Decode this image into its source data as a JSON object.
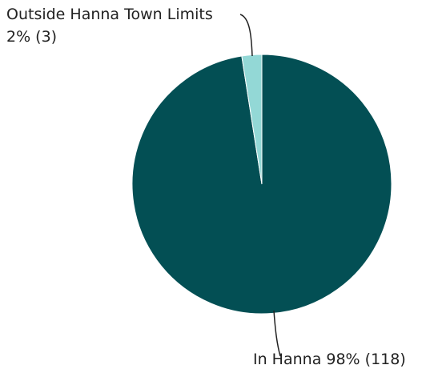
{
  "chart_data": {
    "type": "pie",
    "title": "",
    "slices": [
      {
        "label": "In Hanna",
        "display": "In Hanna 98% (118)",
        "value": 118,
        "percent": 98,
        "color": "#034f54"
      },
      {
        "label": "Outside Hanna Town Limits",
        "display_line1": "Outside Hanna Town Limits",
        "display_line2": "2% (3)",
        "value": 3,
        "percent": 2,
        "color": "#93d8d6"
      }
    ],
    "start": "12 o'clock",
    "direction": "clockwise"
  }
}
